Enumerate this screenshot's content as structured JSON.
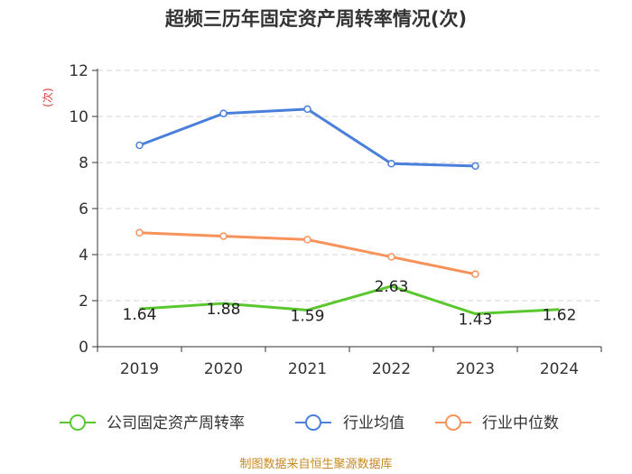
{
  "chart_data": {
    "type": "line",
    "title": "超频三历年固定资产周转率情况(次)",
    "ylabel": "(次)",
    "xlabel": "",
    "categories": [
      "2019",
      "2020",
      "2021",
      "2022",
      "2023",
      "2024"
    ],
    "ylim": [
      0,
      12
    ],
    "yticks": [
      0,
      2,
      4,
      6,
      8,
      10,
      12
    ],
    "grid": true,
    "legend_position": "bottom",
    "series": [
      {
        "name": "公司固定资产周转率",
        "color": "#5ac72f",
        "values": [
          1.64,
          1.88,
          1.59,
          2.63,
          1.43,
          1.62
        ],
        "labels": [
          "1.64",
          "1.88",
          "1.59",
          "2.63",
          "1.43",
          "1.62"
        ]
      },
      {
        "name": "行业均值",
        "color": "#4a7fdc",
        "values": [
          8.75,
          10.13,
          10.32,
          7.95,
          7.85,
          null
        ]
      },
      {
        "name": "行业中位数",
        "color": "#f7935a",
        "values": [
          4.95,
          4.8,
          4.65,
          3.9,
          3.15,
          null
        ]
      }
    ],
    "source": "制图数据来自恒生聚源数据库"
  }
}
